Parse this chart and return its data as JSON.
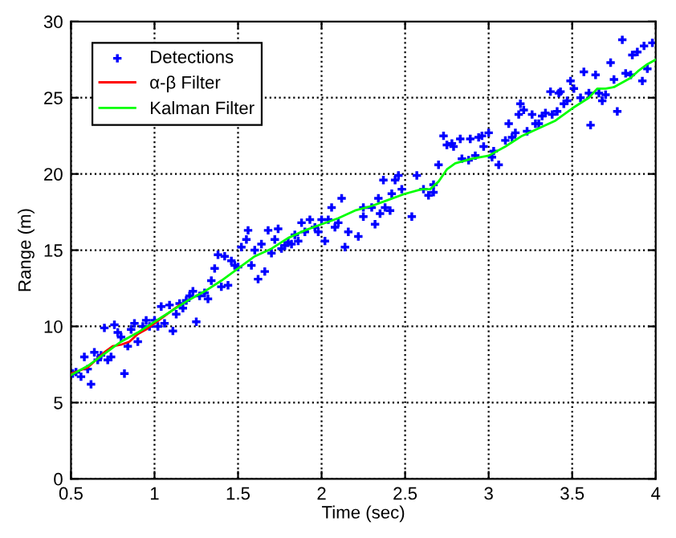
{
  "chart_data": {
    "type": "scatter",
    "xlabel": "Time (sec)",
    "ylabel": "Range (m)",
    "xlim": [
      0.5,
      4
    ],
    "ylim": [
      0,
      30
    ],
    "xticks": [
      0.5,
      1,
      1.5,
      2,
      2.5,
      3,
      3.5,
      4
    ],
    "yticks": [
      0,
      5,
      10,
      15,
      20,
      25,
      30
    ],
    "grid": true,
    "legend": "top left",
    "series": [
      {
        "name": "Detections",
        "color": "#0000ff",
        "marker": "cross",
        "x": [
          0.51,
          0.53,
          0.56,
          0.58,
          0.6,
          0.62,
          0.64,
          0.66,
          0.68,
          0.7,
          0.72,
          0.74,
          0.76,
          0.78,
          0.8,
          0.82,
          0.84,
          0.86,
          0.88,
          0.9,
          0.93,
          0.95,
          0.97,
          1.0,
          1.02,
          1.04,
          1.06,
          1.09,
          1.11,
          1.13,
          1.15,
          1.17,
          1.19,
          1.21,
          1.23,
          1.25,
          1.27,
          1.3,
          1.32,
          1.34,
          1.36,
          1.38,
          1.4,
          1.42,
          1.44,
          1.46,
          1.48,
          1.5,
          1.52,
          1.55,
          1.56,
          1.58,
          1.6,
          1.62,
          1.64,
          1.66,
          1.68,
          1.7,
          1.72,
          1.74,
          1.76,
          1.78,
          1.8,
          1.82,
          1.84,
          1.86,
          1.88,
          1.9,
          1.93,
          1.96,
          1.98,
          2.0,
          2.02,
          2.04,
          2.06,
          2.08,
          2.1,
          2.12,
          2.14,
          2.16,
          2.22,
          2.25,
          2.25,
          2.3,
          2.32,
          2.34,
          2.35,
          2.37,
          2.38,
          2.41,
          2.42,
          2.44,
          2.46,
          2.48,
          2.54,
          2.57,
          2.61,
          2.64,
          2.67,
          2.67,
          2.7,
          2.73,
          2.75,
          2.78,
          2.79,
          2.83,
          2.84,
          2.88,
          2.89,
          2.92,
          2.94,
          2.96,
          2.97,
          3.0,
          3.02,
          3.03,
          3.06,
          3.1,
          3.12,
          3.14,
          3.16,
          3.18,
          3.19,
          3.21,
          3.23,
          3.26,
          3.28,
          3.3,
          3.32,
          3.34,
          3.37,
          3.38,
          3.41,
          3.42,
          3.43,
          3.45,
          3.47,
          3.49,
          3.51,
          3.55,
          3.57,
          3.6,
          3.61,
          3.64,
          3.66,
          3.68,
          3.7,
          3.73,
          3.75,
          3.77,
          3.8,
          3.82,
          3.85,
          3.86,
          3.89,
          3.92,
          3.93,
          3.95,
          3.98
        ],
        "values": [
          6.9,
          7.0,
          6.7,
          8.0,
          7.2,
          6.2,
          8.3,
          7.8,
          8.1,
          9.9,
          7.8,
          8.0,
          10.1,
          9.6,
          9.3,
          6.9,
          8.7,
          9.8,
          10.2,
          9.0,
          10.0,
          10.4,
          10.0,
          10.4,
          10.0,
          11.3,
          10.2,
          11.4,
          9.7,
          10.8,
          11.5,
          11.2,
          11.7,
          12.0,
          12.3,
          10.3,
          12.0,
          12.2,
          11.8,
          13.0,
          13.8,
          14.7,
          12.6,
          14.6,
          12.7,
          14.3,
          14.0,
          13.9,
          15.2,
          15.7,
          16.3,
          14.0,
          15.0,
          13.1,
          15.4,
          13.6,
          16.3,
          14.8,
          15.7,
          16.4,
          15.1,
          15.3,
          15.5,
          15.4,
          16.0,
          15.6,
          16.8,
          16.2,
          17.0,
          16.5,
          16.2,
          17.0,
          15.6,
          17.0,
          17.8,
          16.5,
          16.8,
          18.4,
          15.2,
          16.2,
          15.9,
          17.2,
          17.8,
          17.8,
          16.7,
          18.4,
          17.4,
          19.6,
          17.8,
          17.6,
          18.7,
          19.6,
          19.9,
          19.0,
          17.2,
          19.9,
          19.0,
          18.6,
          18.8,
          19.3,
          20.6,
          22.5,
          21.9,
          22.0,
          21.8,
          22.3,
          21.0,
          20.9,
          22.3,
          21.2,
          22.4,
          22.5,
          21.8,
          22.7,
          21.1,
          21.5,
          20.6,
          22.2,
          23.3,
          22.4,
          22.7,
          23.9,
          24.6,
          24.2,
          22.8,
          23.9,
          23.3,
          23.3,
          23.8,
          24.0,
          25.4,
          23.9,
          24.1,
          25.3,
          25.4,
          24.6,
          24.8,
          26.1,
          25.6,
          25.0,
          26.7,
          25.3,
          23.2,
          26.5,
          25.3,
          24.8,
          25.2,
          27.3,
          26.2,
          24.1,
          28.8,
          26.6,
          26.5,
          27.8,
          28.0,
          26.1,
          28.4,
          26.9,
          28.6
        ]
      },
      {
        "name": "α-β Filter",
        "type": "line",
        "color": "#ff0000",
        "x": [
          0.5,
          0.6,
          0.7,
          0.75,
          0.8,
          0.85,
          0.9,
          0.95,
          1.0,
          1.05,
          1.1,
          1.15
        ],
        "values": [
          6.9,
          7.3,
          8.3,
          8.7,
          8.8,
          9.0,
          9.5,
          9.8,
          10.2,
          10.6,
          11.0,
          11.4
        ]
      },
      {
        "name": "Kalman Filter",
        "type": "line",
        "color": "#00ff00",
        "x": [
          0.5,
          0.6,
          0.7,
          0.8,
          0.9,
          1.0,
          1.1,
          1.2,
          1.3,
          1.4,
          1.5,
          1.6,
          1.7,
          1.8,
          1.9,
          2.0,
          2.1,
          2.2,
          2.3,
          2.4,
          2.5,
          2.6,
          2.65,
          2.7,
          2.75,
          2.8,
          2.9,
          3.0,
          3.1,
          3.2,
          3.3,
          3.4,
          3.5,
          3.6,
          3.65,
          3.7,
          3.75,
          3.8,
          3.85,
          3.9,
          3.95,
          4.0
        ],
        "values": [
          6.8,
          7.4,
          8.2,
          9.0,
          9.6,
          10.3,
          11.0,
          11.7,
          12.3,
          13.0,
          13.8,
          14.6,
          15.1,
          15.8,
          16.3,
          16.7,
          17.1,
          17.6,
          17.9,
          18.3,
          18.7,
          19.0,
          19.0,
          19.5,
          20.3,
          20.7,
          21.0,
          21.2,
          21.8,
          22.5,
          23.0,
          23.5,
          24.3,
          25.0,
          25.6,
          25.6,
          25.7,
          26.0,
          26.3,
          26.8,
          27.2,
          27.5
        ]
      }
    ]
  }
}
